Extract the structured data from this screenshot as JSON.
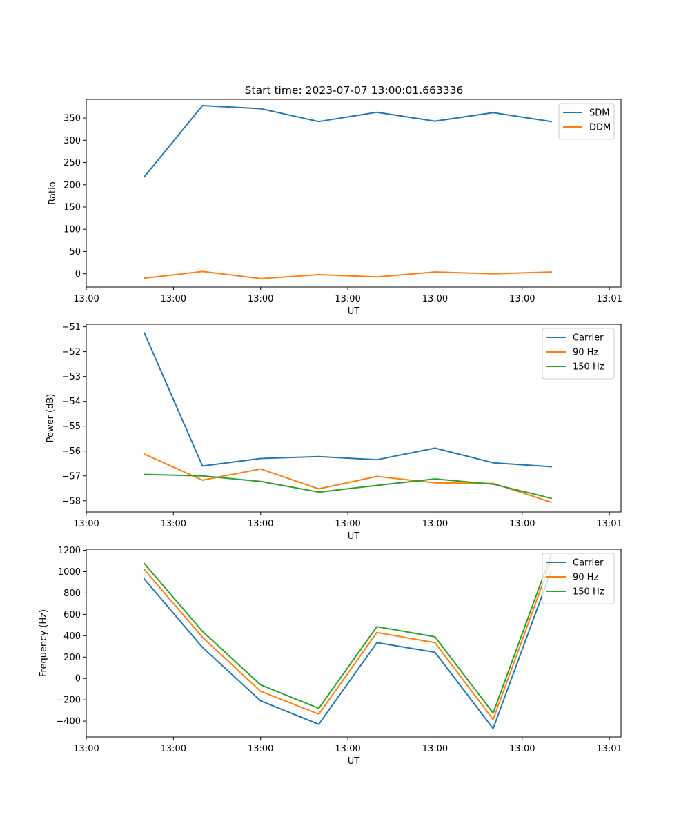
{
  "figure_title": "Start time: 2023-07-07 13:00:01.663336",
  "colors": {
    "blue": "#1f77b4",
    "orange": "#ff7f0e",
    "green": "#2ca02c"
  },
  "chart_data": [
    {
      "type": "line",
      "title": "Start time: 2023-07-07 13:00:01.663336",
      "xlabel": "UT",
      "ylabel": "Ratio",
      "x": [
        1,
        2,
        3,
        4,
        5,
        6,
        7,
        8
      ],
      "xlim": [
        0,
        9.2
      ],
      "xticks": [
        {
          "v": 0,
          "label": "13:00"
        },
        {
          "v": 1.5,
          "label": "13:00"
        },
        {
          "v": 3,
          "label": "13:00"
        },
        {
          "v": 4.5,
          "label": "13:00"
        },
        {
          "v": 6,
          "label": "13:00"
        },
        {
          "v": 7.5,
          "label": "13:00"
        },
        {
          "v": 9,
          "label": "13:01"
        }
      ],
      "ylim": [
        -30,
        392
      ],
      "yticks": [
        {
          "v": 0,
          "label": "0"
        },
        {
          "v": 50,
          "label": "50"
        },
        {
          "v": 100,
          "label": "100"
        },
        {
          "v": 150,
          "label": "150"
        },
        {
          "v": 200,
          "label": "200"
        },
        {
          "v": 250,
          "label": "250"
        },
        {
          "v": 300,
          "label": "300"
        },
        {
          "v": 350,
          "label": "350"
        }
      ],
      "legend_position": "top-right",
      "series": [
        {
          "name": "SDM",
          "color": "#1f77b4",
          "values": [
            218,
            378,
            371,
            342,
            363,
            343,
            362,
            342
          ]
        },
        {
          "name": "DDM",
          "color": "#ff7f0e",
          "values": [
            -10,
            5,
            -11,
            -2,
            -7,
            4,
            0,
            4
          ]
        }
      ]
    },
    {
      "type": "line",
      "title": "",
      "xlabel": "UT",
      "ylabel": "Power (dB)",
      "x": [
        1,
        2,
        3,
        4,
        5,
        6,
        7,
        8
      ],
      "xlim": [
        0,
        9.2
      ],
      "xticks": [
        {
          "v": 0,
          "label": "13:00"
        },
        {
          "v": 1.5,
          "label": "13:00"
        },
        {
          "v": 3,
          "label": "13:00"
        },
        {
          "v": 4.5,
          "label": "13:00"
        },
        {
          "v": 6,
          "label": "13:00"
        },
        {
          "v": 7.5,
          "label": "13:00"
        },
        {
          "v": 9,
          "label": "13:01"
        }
      ],
      "ylim": [
        -58.45,
        -50.9
      ],
      "yticks": [
        {
          "v": -58,
          "label": "−58"
        },
        {
          "v": -57,
          "label": "−57"
        },
        {
          "v": -56,
          "label": "−56"
        },
        {
          "v": -55,
          "label": "−55"
        },
        {
          "v": -54,
          "label": "−54"
        },
        {
          "v": -53,
          "label": "−53"
        },
        {
          "v": -52,
          "label": "−52"
        },
        {
          "v": -51,
          "label": "−51"
        }
      ],
      "legend_position": "top-right",
      "series": [
        {
          "name": "Carrier",
          "color": "#1f77b4",
          "values": [
            -51.25,
            -56.6,
            -56.3,
            -56.22,
            -56.35,
            -55.88,
            -56.47,
            -56.63
          ]
        },
        {
          "name": "90 Hz",
          "color": "#ff7f0e",
          "values": [
            -56.12,
            -57.17,
            -56.72,
            -57.52,
            -57.02,
            -57.28,
            -57.3,
            -58.06
          ]
        },
        {
          "name": "150 Hz",
          "color": "#2ca02c",
          "values": [
            -56.94,
            -57.0,
            -57.22,
            -57.65,
            -57.38,
            -57.12,
            -57.33,
            -57.9
          ]
        }
      ]
    },
    {
      "type": "line",
      "title": "",
      "xlabel": "UT",
      "ylabel": "Frequency (Hz)",
      "x": [
        1,
        2,
        3,
        4,
        5,
        6,
        7,
        8
      ],
      "xlim": [
        0,
        9.2
      ],
      "xticks": [
        {
          "v": 0,
          "label": "13:00"
        },
        {
          "v": 1.5,
          "label": "13:00"
        },
        {
          "v": 3,
          "label": "13:00"
        },
        {
          "v": 4.5,
          "label": "13:00"
        },
        {
          "v": 6,
          "label": "13:00"
        },
        {
          "v": 7.5,
          "label": "13:00"
        },
        {
          "v": 9,
          "label": "13:01"
        }
      ],
      "ylim": [
        -548,
        1210
      ],
      "yticks": [
        {
          "v": -400,
          "label": "−400"
        },
        {
          "v": -200,
          "label": "−200"
        },
        {
          "v": 0,
          "label": "0"
        },
        {
          "v": 200,
          "label": "200"
        },
        {
          "v": 400,
          "label": "400"
        },
        {
          "v": 600,
          "label": "600"
        },
        {
          "v": 800,
          "label": "800"
        },
        {
          "v": 1000,
          "label": "1000"
        },
        {
          "v": 1200,
          "label": "1200"
        }
      ],
      "legend_position": "top-right",
      "series": [
        {
          "name": "Carrier",
          "color": "#1f77b4",
          "values": [
            930,
            290,
            -210,
            -430,
            335,
            245,
            -470,
            1010
          ]
        },
        {
          "name": "90 Hz",
          "color": "#ff7f0e",
          "values": [
            1020,
            385,
            -120,
            -335,
            430,
            335,
            -385,
            1105
          ]
        },
        {
          "name": "150 Hz",
          "color": "#2ca02c",
          "values": [
            1075,
            440,
            -60,
            -280,
            485,
            390,
            -325,
            1160
          ]
        }
      ]
    }
  ]
}
